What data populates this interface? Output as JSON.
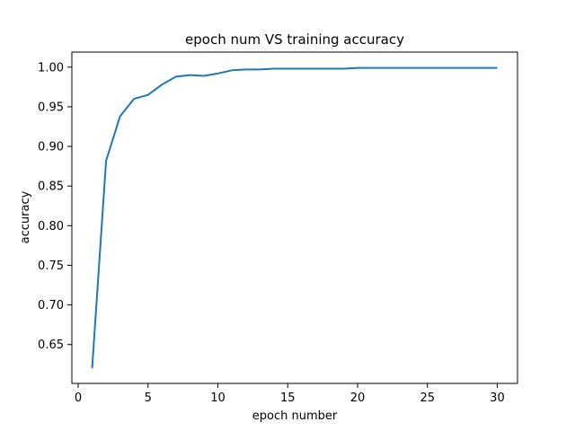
{
  "chart_data": {
    "type": "line",
    "title": "epoch num VS training accuracy",
    "xlabel": "epoch number",
    "ylabel": "accuracy",
    "xlim": [
      -0.45,
      31.45
    ],
    "ylim": [
      0.601,
      1.019
    ],
    "x_ticks": [
      0,
      5,
      10,
      15,
      20,
      25,
      30
    ],
    "y_ticks": [
      0.65,
      0.7,
      0.75,
      0.8,
      0.85,
      0.9,
      0.95,
      1.0
    ],
    "x_tick_labels": [
      "0",
      "5",
      "10",
      "15",
      "20",
      "25",
      "30"
    ],
    "y_tick_labels": [
      "0.65",
      "0.70",
      "0.75",
      "0.80",
      "0.85",
      "0.90",
      "0.95",
      "1.00"
    ],
    "grid": false,
    "series": [
      {
        "color": "#1f77b4",
        "x": [
          1,
          2,
          3,
          4,
          5,
          6,
          7,
          8,
          9,
          10,
          11,
          12,
          13,
          14,
          15,
          16,
          17,
          18,
          19,
          20,
          21,
          22,
          23,
          24,
          25,
          26,
          27,
          28,
          29,
          30
        ],
        "y": [
          0.62,
          0.882,
          0.938,
          0.96,
          0.965,
          0.978,
          0.988,
          0.99,
          0.989,
          0.992,
          0.996,
          0.997,
          0.997,
          0.998,
          0.998,
          0.998,
          0.998,
          0.998,
          0.998,
          0.999,
          0.999,
          0.999,
          0.999,
          0.999,
          0.999,
          0.999,
          0.999,
          0.999,
          0.999,
          0.999
        ]
      }
    ]
  }
}
